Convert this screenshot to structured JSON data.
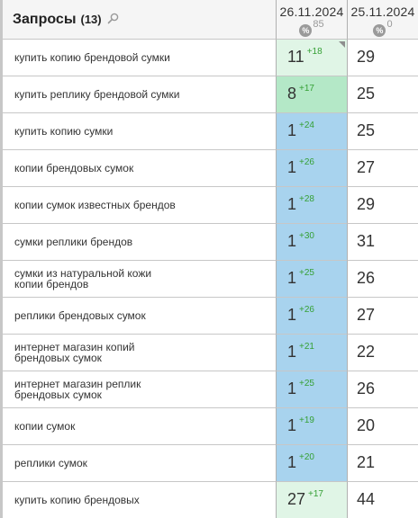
{
  "header": {
    "title": "Запросы",
    "count": "(13)",
    "search_icon": "search-icon",
    "dates": [
      {
        "date": "26.11.2024",
        "icon": "percent-icon",
        "icon_glyph": "%",
        "value": "85"
      },
      {
        "date": "25.11.2024",
        "icon": "percent-icon",
        "icon_glyph": "%",
        "value": "0"
      }
    ]
  },
  "colors": {
    "light_green": "#e0f5e6",
    "green": "#b4e8c7",
    "blue": "#a8d3ee",
    "change_positive": "#35a035"
  },
  "rows": [
    {
      "query": [
        "купить копию брендовой сумки"
      ],
      "pos1": "11",
      "chg1": "+18",
      "pos2": "29",
      "bg": "light",
      "corner": true
    },
    {
      "query": [
        "купить реплику брендовой сумки"
      ],
      "pos1": "8",
      "chg1": "+17",
      "pos2": "25",
      "bg": "green"
    },
    {
      "query": [
        "купить копию сумки"
      ],
      "pos1": "1",
      "chg1": "+24",
      "pos2": "25",
      "bg": "blue"
    },
    {
      "query": [
        "копии брендовых сумок"
      ],
      "pos1": "1",
      "chg1": "+26",
      "pos2": "27",
      "bg": "blue"
    },
    {
      "query": [
        "копии сумок известных брендов"
      ],
      "pos1": "1",
      "chg1": "+28",
      "pos2": "29",
      "bg": "blue"
    },
    {
      "query": [
        "сумки реплики брендов"
      ],
      "pos1": "1",
      "chg1": "+30",
      "pos2": "31",
      "bg": "blue"
    },
    {
      "query": [
        "сумки из натуральной кожи",
        "копии брендов"
      ],
      "pos1": "1",
      "chg1": "+25",
      "pos2": "26",
      "bg": "blue"
    },
    {
      "query": [
        "реплики брендовых сумок"
      ],
      "pos1": "1",
      "chg1": "+26",
      "pos2": "27",
      "bg": "blue"
    },
    {
      "query": [
        "интернет магазин копий",
        "брендовых сумок"
      ],
      "pos1": "1",
      "chg1": "+21",
      "pos2": "22",
      "bg": "blue"
    },
    {
      "query": [
        "интернет магазин реплик",
        "брендовых сумок"
      ],
      "pos1": "1",
      "chg1": "+25",
      "pos2": "26",
      "bg": "blue"
    },
    {
      "query": [
        "копии сумок"
      ],
      "pos1": "1",
      "chg1": "+19",
      "pos2": "20",
      "bg": "blue"
    },
    {
      "query": [
        "реплики сумок"
      ],
      "pos1": "1",
      "chg1": "+20",
      "pos2": "21",
      "bg": "blue"
    },
    {
      "query": [
        "купить копию брендовых"
      ],
      "pos1": "27",
      "chg1": "+17",
      "pos2": "44",
      "bg": "light"
    }
  ]
}
